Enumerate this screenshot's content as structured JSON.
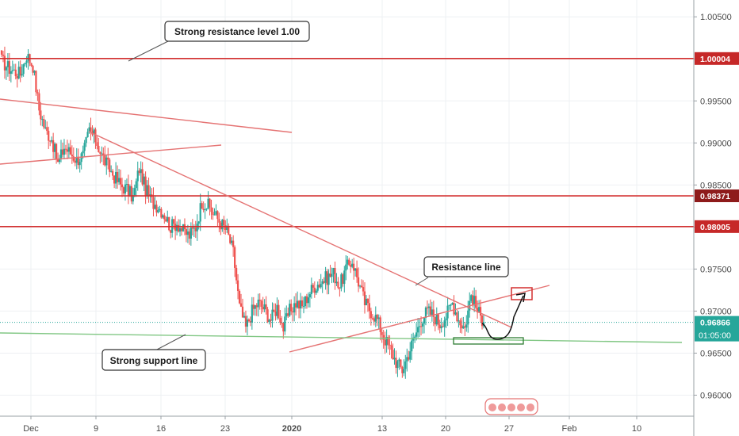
{
  "chart_data": {
    "type": "candlestick",
    "title": "",
    "xlabel": "",
    "ylabel": "",
    "ylim": [
      0.9575,
      1.007
    ],
    "y_ticks": [
      0.96,
      0.965,
      0.97,
      0.975,
      0.98,
      0.985,
      0.99,
      0.995,
      1.0,
      1.005
    ],
    "y_tick_labels": [
      "0.96000",
      "0.96500",
      "0.97000",
      "0.97500",
      "",
      "0.98500",
      "0.99000",
      "0.99500",
      "",
      "1.00500"
    ],
    "x_tick_labels": [
      "Dec",
      "9",
      "16",
      "23",
      "2020",
      "13",
      "20",
      "27",
      "Feb",
      "10"
    ],
    "grid": true,
    "colors": {
      "up": "#26a69a",
      "down": "#ef5350",
      "resistance_line": "#d32f2f",
      "trendline": "#e57373",
      "support_line": "#81c784",
      "current_price": "#26a69a"
    },
    "horizontal_levels": [
      {
        "name": "strong-resistance",
        "value": 1.00004,
        "label": "1.00004"
      },
      {
        "name": "resistance-mid",
        "value": 0.98371,
        "label": "0.98371"
      },
      {
        "name": "resistance-low",
        "value": 0.98005,
        "label": "0.98005"
      }
    ],
    "current_price": {
      "value": 0.96866,
      "label": "0.96866",
      "countdown": "01:05:00"
    },
    "annotations": [
      {
        "name": "strong-resistance-callout",
        "text": "Strong resistance level 1.00"
      },
      {
        "name": "resistance-line-callout",
        "text": "Resistance line"
      },
      {
        "name": "strong-support-callout",
        "text": "Strong support line"
      }
    ],
    "series": [
      {
        "values": [
          0.9998,
          0.999,
          0.9985,
          0.9982,
          1.0005,
          0.9992,
          0.994,
          0.9915,
          0.9905,
          0.9875,
          0.9895,
          0.9888,
          0.988,
          0.9885,
          0.9915,
          0.9905,
          0.9885,
          0.9872,
          0.986,
          0.985,
          0.9845,
          0.9835,
          0.987,
          0.9845,
          0.983,
          0.9825,
          0.9815,
          0.98,
          0.9805,
          0.9795,
          0.979,
          0.98,
          0.983,
          0.9825,
          0.9815,
          0.9805,
          0.9795,
          0.977,
          0.9705,
          0.968,
          0.97,
          0.971,
          0.9702,
          0.969,
          0.9705,
          0.968,
          0.97,
          0.971,
          0.9705,
          0.972,
          0.973,
          0.9735,
          0.974,
          0.9745,
          0.973,
          0.975,
          0.976,
          0.9735,
          0.971,
          0.97,
          0.969,
          0.967,
          0.9655,
          0.964,
          0.963,
          0.965,
          0.967,
          0.969,
          0.97,
          0.9695,
          0.9685,
          0.9695,
          0.971,
          0.969,
          0.968,
          0.972,
          0.97,
          0.9687
        ]
      }
    ]
  }
}
